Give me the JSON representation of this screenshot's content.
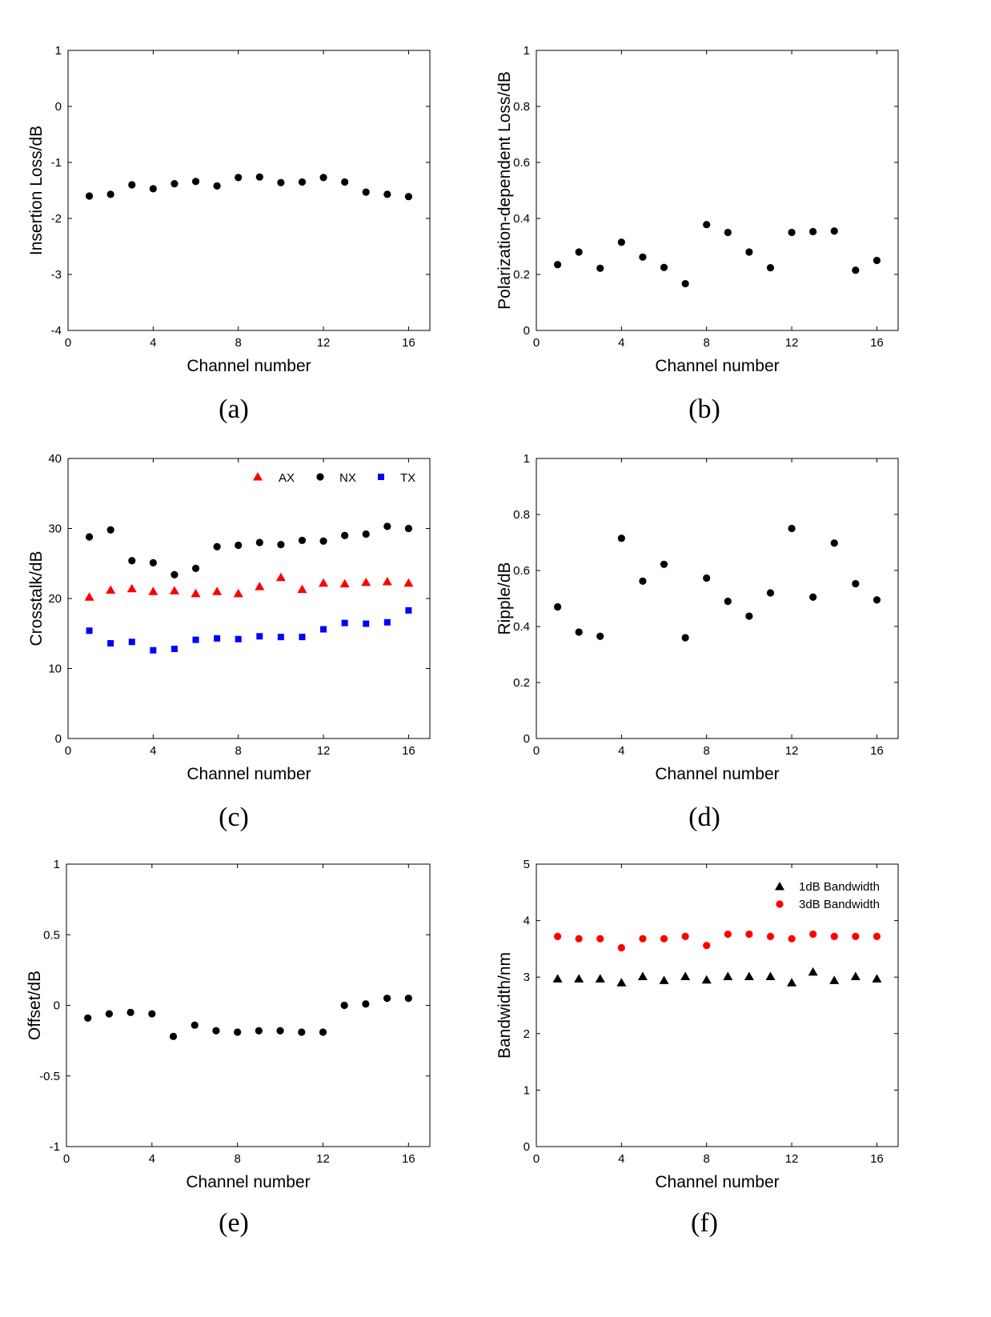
{
  "chart_data": [
    {
      "id": "a",
      "type": "scatter",
      "caption": "(a)",
      "xlabel": "Channel number",
      "ylabel": "Insertion Loss/dB",
      "xlim": [
        0,
        17
      ],
      "ylim": [
        -4,
        1
      ],
      "xticks": [
        0,
        4,
        8,
        12,
        16
      ],
      "yticks": [
        -4,
        -3,
        -2,
        -1,
        0,
        1
      ],
      "legend": null,
      "series": [
        {
          "marker": "circle",
          "color": "#000000",
          "x": [
            1,
            2,
            3,
            4,
            5,
            6,
            7,
            8,
            9,
            10,
            11,
            12,
            13,
            14,
            15,
            16
          ],
          "y": [
            -1.6,
            -1.57,
            -1.4,
            -1.47,
            -1.38,
            -1.34,
            -1.42,
            -1.27,
            -1.26,
            -1.36,
            -1.35,
            -1.27,
            -1.35,
            -1.53,
            -1.57,
            -1.61
          ]
        }
      ]
    },
    {
      "id": "b",
      "type": "scatter",
      "caption": "(b)",
      "xlabel": "Channel number",
      "ylabel": "Polarization-dependent Loss/dB",
      "xlim": [
        0,
        17
      ],
      "ylim": [
        0,
        1
      ],
      "xticks": [
        0,
        4,
        8,
        12,
        16
      ],
      "yticks": [
        0,
        0.2,
        0.4,
        0.6,
        0.8,
        1
      ],
      "legend": null,
      "series": [
        {
          "marker": "circle",
          "color": "#000000",
          "x": [
            1,
            2,
            3,
            4,
            5,
            6,
            7,
            8,
            9,
            10,
            11,
            12,
            13,
            14,
            15,
            16
          ],
          "y": [
            0.235,
            0.28,
            0.222,
            0.315,
            0.262,
            0.225,
            0.167,
            0.378,
            0.35,
            0.28,
            0.224,
            0.35,
            0.353,
            0.355,
            0.215,
            0.25
          ]
        }
      ]
    },
    {
      "id": "c",
      "type": "scatter",
      "caption": "(c)",
      "xlabel": "Channel number",
      "ylabel": "Crosstalk/dB",
      "xlim": [
        0,
        17
      ],
      "ylim": [
        0,
        40
      ],
      "xticks": [
        0,
        4,
        8,
        12,
        16
      ],
      "yticks": [
        0,
        10,
        20,
        30,
        40
      ],
      "legend": "top-right-horizontal",
      "series": [
        {
          "name": "AX",
          "marker": "triangle",
          "color": "#ff0000",
          "x": [
            1,
            2,
            3,
            4,
            5,
            6,
            7,
            8,
            9,
            10,
            11,
            12,
            13,
            14,
            15,
            16
          ],
          "y": [
            20.2,
            21.2,
            21.4,
            21.0,
            21.1,
            20.7,
            21.0,
            20.7,
            21.7,
            23.0,
            21.3,
            22.2,
            22.1,
            22.3,
            22.4,
            22.2
          ]
        },
        {
          "name": "NX",
          "marker": "circle",
          "color": "#000000",
          "x": [
            1,
            2,
            3,
            4,
            5,
            6,
            7,
            8,
            9,
            10,
            11,
            12,
            13,
            14,
            15,
            16
          ],
          "y": [
            28.8,
            29.8,
            25.4,
            25.1,
            23.4,
            24.3,
            27.4,
            27.6,
            28.0,
            27.7,
            28.3,
            28.2,
            29.0,
            29.2,
            30.3,
            30.0
          ]
        },
        {
          "name": "TX",
          "marker": "square",
          "color": "#0000ff",
          "x": [
            1,
            2,
            3,
            4,
            5,
            6,
            7,
            8,
            9,
            10,
            11,
            12,
            13,
            14,
            15,
            16
          ],
          "y": [
            15.4,
            13.6,
            13.8,
            12.6,
            12.8,
            14.1,
            14.3,
            14.2,
            14.6,
            14.5,
            14.5,
            15.6,
            16.5,
            16.4,
            16.6,
            18.3
          ]
        }
      ]
    },
    {
      "id": "d",
      "type": "scatter",
      "caption": "(d)",
      "xlabel": "Channel number",
      "ylabel": "Ripple/dB",
      "xlim": [
        0,
        17
      ],
      "ylim": [
        0,
        1
      ],
      "xticks": [
        0,
        4,
        8,
        12,
        16
      ],
      "yticks": [
        0,
        0.2,
        0.4,
        0.6,
        0.8,
        1
      ],
      "legend": null,
      "series": [
        {
          "marker": "circle",
          "color": "#000000",
          "x": [
            1,
            2,
            3,
            4,
            5,
            6,
            7,
            8,
            9,
            10,
            11,
            12,
            13,
            14,
            15,
            16
          ],
          "y": [
            0.47,
            0.38,
            0.365,
            0.715,
            0.562,
            0.622,
            0.36,
            0.573,
            0.49,
            0.437,
            0.52,
            0.75,
            0.505,
            0.698,
            0.553,
            0.495
          ]
        }
      ]
    },
    {
      "id": "e",
      "type": "scatter",
      "caption": "(e)",
      "xlabel": "Channel number",
      "ylabel": "Offset/dB",
      "xlim": [
        0,
        17
      ],
      "ylim": [
        -1,
        1
      ],
      "xticks": [
        0,
        4,
        8,
        12,
        16
      ],
      "yticks": [
        -1,
        -0.5,
        0,
        0.5,
        1
      ],
      "ytick_labels": [
        "-1",
        "-0.5",
        "0",
        "0.5",
        "1"
      ],
      "legend": null,
      "series": [
        {
          "marker": "circle",
          "color": "#000000",
          "x": [
            1,
            2,
            3,
            4,
            5,
            6,
            7,
            8,
            9,
            10,
            11,
            12,
            13,
            14,
            15,
            16
          ],
          "y": [
            -0.09,
            -0.06,
            -0.05,
            -0.06,
            -0.22,
            -0.14,
            -0.18,
            -0.19,
            -0.18,
            -0.18,
            -0.19,
            -0.19,
            0.0,
            0.01,
            0.05,
            0.05
          ]
        }
      ]
    },
    {
      "id": "f",
      "type": "scatter",
      "caption": "(f)",
      "xlabel": "Channel number",
      "ylabel": "Bandwidth/nm",
      "xlim": [
        0,
        17
      ],
      "ylim": [
        0,
        5
      ],
      "xticks": [
        0,
        4,
        8,
        12,
        16
      ],
      "yticks": [
        0,
        1,
        2,
        3,
        4,
        5
      ],
      "legend": "top-right-vertical",
      "series": [
        {
          "name": "1dB Bandwidth",
          "marker": "triangle",
          "color": "#000000",
          "x": [
            1,
            2,
            3,
            4,
            5,
            6,
            7,
            8,
            9,
            10,
            11,
            12,
            13,
            14,
            15,
            16
          ],
          "y": [
            2.97,
            2.97,
            2.97,
            2.9,
            3.01,
            2.94,
            3.01,
            2.95,
            3.01,
            3.01,
            3.01,
            2.9,
            3.09,
            2.94,
            3.01,
            2.97
          ]
        },
        {
          "name": "3dB Bandwidth",
          "marker": "circle",
          "color": "#ff0000",
          "x": [
            1,
            2,
            3,
            4,
            5,
            6,
            7,
            8,
            9,
            10,
            11,
            12,
            13,
            14,
            15,
            16
          ],
          "y": [
            3.72,
            3.68,
            3.68,
            3.52,
            3.68,
            3.68,
            3.72,
            3.56,
            3.76,
            3.76,
            3.72,
            3.68,
            3.76,
            3.72,
            3.72,
            3.72
          ]
        }
      ]
    }
  ]
}
